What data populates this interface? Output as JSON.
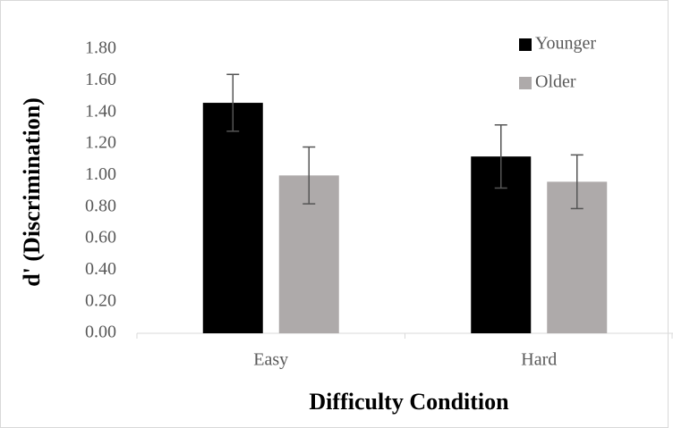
{
  "chart_data": {
    "type": "bar",
    "x_label": "Difficulty Condition",
    "y_label": "d' (Discrimination)",
    "categories": [
      "Easy",
      "Hard"
    ],
    "series": [
      {
        "name": "Younger",
        "color": "#000000",
        "values": [
          1.46,
          1.12
        ],
        "errors": [
          0.18,
          0.2
        ]
      },
      {
        "name": "Older",
        "color": "#aeaaaa",
        "values": [
          1.0,
          0.96
        ],
        "errors": [
          0.18,
          0.17
        ]
      }
    ],
    "ylim": [
      0,
      1.8
    ],
    "yticks": [
      {
        "value": 0,
        "label": "0.00"
      },
      {
        "value": 0.2,
        "label": "0.20"
      },
      {
        "value": 0.4,
        "label": "0.40"
      },
      {
        "value": 0.6,
        "label": "0.60"
      },
      {
        "value": 0.8,
        "label": "0.80"
      },
      {
        "value": 1.0,
        "label": "1.00"
      },
      {
        "value": 1.2,
        "label": "1.20"
      },
      {
        "value": 1.4,
        "label": "1.40"
      },
      {
        "value": 1.6,
        "label": "1.60"
      },
      {
        "value": 1.8,
        "label": "1.80"
      }
    ],
    "grid": false,
    "legend": "top-right"
  }
}
